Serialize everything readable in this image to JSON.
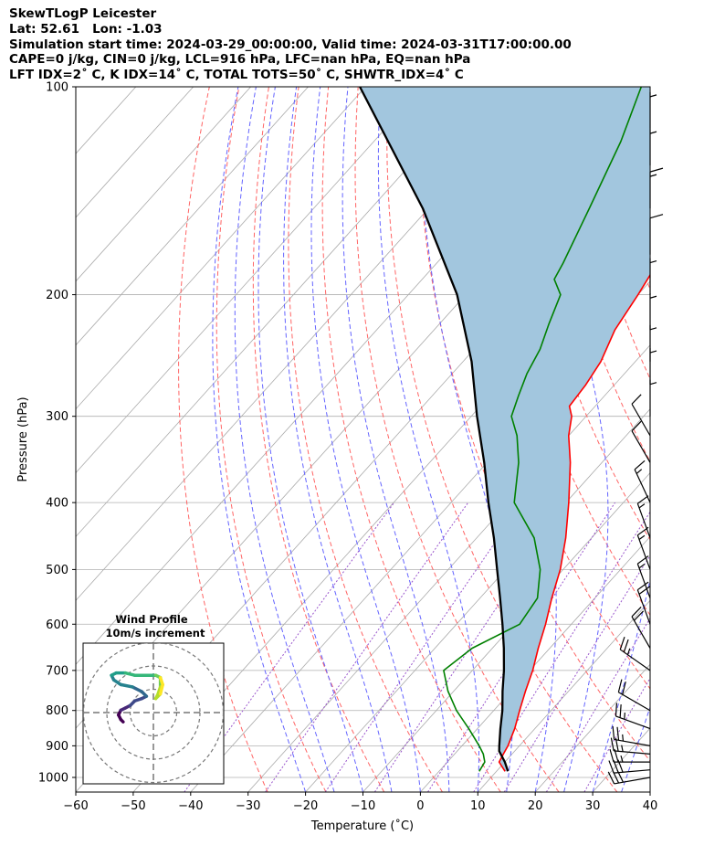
{
  "header": {
    "title": "SkewTLogP Leicester",
    "location": "Lat: 52.61   Lon: -1.03",
    "times": "Simulation start time: 2024-03-29_00:00:00, Valid time: 2024-03-31T17:00:00.00",
    "indices1": "CAPE=0 j/kg, CIN=0 j/kg, LCL=916 hPa, LFC=nan hPa, EQ=nan hPa",
    "indices2": "LFT IDX=2˚ C, K IDX=14˚ C, TOTAL TOTS=50˚ C, SHWTR_IDX=4˚ C"
  },
  "chart_data": {
    "type": "line",
    "subtype": "skew-t log-p",
    "xlabel": "Temperature (˚C)",
    "ylabel": "Pressure (hPa)",
    "xlim": [
      -60,
      40
    ],
    "ylim": [
      1050,
      100
    ],
    "yscale": "log",
    "x_ticks": [
      -60,
      -50,
      -40,
      -30,
      -20,
      -10,
      0,
      10,
      20,
      30,
      40
    ],
    "y_ticks": [
      100,
      200,
      300,
      400,
      500,
      600,
      700,
      800,
      900,
      1000
    ],
    "grid": true,
    "colors": {
      "temperature": "#ff0000",
      "dewpoint": "#008000",
      "parcel": "#000000",
      "fill": "#a2c6de",
      "dry_adiabats": "#ff6464",
      "moist_adiabats": "#6464ff",
      "mixing_ratio": "#9955cc",
      "isotherms": "#aaaaaa"
    },
    "series": [
      {
        "name": "temperature",
        "p": [
          980,
          950,
          925,
          900,
          850,
          800,
          750,
          700,
          650,
          600,
          550,
          500,
          450,
          400,
          350,
          320,
          300,
          290,
          270,
          250,
          225,
          200,
          175,
          150,
          130,
          115,
          100
        ],
        "t": [
          11.5,
          9.0,
          8.5,
          8.0,
          6.5,
          4.5,
          2.5,
          0.5,
          -2.0,
          -4.5,
          -7.5,
          -10.5,
          -14.5,
          -19.5,
          -25.5,
          -30.0,
          -32.5,
          -34.5,
          -35.0,
          -36.0,
          -38.5,
          -40.0,
          -42.0,
          -44.5,
          -48.0,
          -52.5,
          -58.0
        ]
      },
      {
        "name": "dewpoint",
        "p": [
          980,
          950,
          925,
          900,
          850,
          800,
          750,
          700,
          650,
          600,
          550,
          500,
          450,
          400,
          350,
          320,
          300,
          280,
          260,
          240,
          220,
          200,
          190,
          180,
          150,
          120,
          100
        ],
        "t": [
          7.0,
          6.5,
          5.0,
          3.0,
          -1.5,
          -6.5,
          -11.0,
          -15.0,
          -13.5,
          -9.0,
          -10.0,
          -14.0,
          -20.0,
          -29.0,
          -34.5,
          -39.0,
          -43.0,
          -45.0,
          -47.0,
          -48.5,
          -51.0,
          -53.5,
          -57.0,
          -58.0,
          -62.0,
          -67.0,
          -72.0
        ]
      },
      {
        "name": "parcel",
        "p": [
          980,
          950,
          916,
          900,
          850,
          800,
          750,
          700,
          650,
          600,
          550,
          500,
          450,
          400,
          350,
          300,
          250,
          200,
          150,
          100
        ],
        "t": [
          12.0,
          10.0,
          7.3,
          6.5,
          4.0,
          1.5,
          -1.5,
          -4.5,
          -8.0,
          -12.0,
          -16.5,
          -21.5,
          -27.0,
          -33.5,
          -40.5,
          -49.0,
          -58.5,
          -71.5,
          -91.0,
          -121.0
        ]
      }
    ],
    "wind_barbs": [
      {
        "p": 1000,
        "speed_kt": 30,
        "dir": 260
      },
      {
        "p": 975,
        "speed_kt": 30,
        "dir": 265
      },
      {
        "p": 950,
        "speed_kt": 25,
        "dir": 270
      },
      {
        "p": 925,
        "speed_kt": 25,
        "dir": 275
      },
      {
        "p": 900,
        "speed_kt": 25,
        "dir": 280
      },
      {
        "p": 850,
        "speed_kt": 25,
        "dir": 290
      },
      {
        "p": 800,
        "speed_kt": 20,
        "dir": 300
      },
      {
        "p": 700,
        "speed_kt": 25,
        "dir": 305
      },
      {
        "p": 650,
        "speed_kt": 20,
        "dir": 330
      },
      {
        "p": 600,
        "speed_kt": 20,
        "dir": 340
      },
      {
        "p": 550,
        "speed_kt": 15,
        "dir": 340
      },
      {
        "p": 500,
        "speed_kt": 15,
        "dir": 340
      },
      {
        "p": 450,
        "speed_kt": 15,
        "dir": 340
      },
      {
        "p": 400,
        "speed_kt": 15,
        "dir": 335
      },
      {
        "p": 350,
        "speed_kt": 10,
        "dir": 330
      },
      {
        "p": 320,
        "speed_kt": 10,
        "dir": 330
      },
      {
        "p": 300,
        "speed_kt": 5,
        "dir": 0
      },
      {
        "p": 270,
        "speed_kt": 5,
        "dir": 0
      },
      {
        "p": 250,
        "speed_kt": 5,
        "dir": 0
      },
      {
        "p": 225,
        "speed_kt": 5,
        "dir": 0
      },
      {
        "p": 200,
        "speed_kt": 5,
        "dir": 0
      },
      {
        "p": 175,
        "speed_kt": 10,
        "dir": 0
      },
      {
        "p": 150,
        "speed_kt": 15,
        "dir": 0
      },
      {
        "p": 130,
        "speed_kt": 5,
        "dir": 0
      },
      {
        "p": 115,
        "speed_kt": 5,
        "dir": 0
      }
    ],
    "hodograph": {
      "title": "Wind Profile",
      "subtitle": "10m/s increment",
      "rings_ms": [
        10,
        20,
        30
      ],
      "u": [
        -13,
        -14,
        -15,
        -14,
        -12,
        -10,
        -8,
        -5,
        -3,
        -5,
        -9,
        -14,
        -17,
        -18,
        -16,
        -12,
        -8,
        -4,
        1,
        3,
        3,
        2,
        1,
        3,
        4,
        3
      ],
      "v": [
        -4,
        -3,
        -1,
        1,
        2,
        3,
        5,
        6,
        7,
        9,
        11,
        12,
        14,
        16,
        17,
        17,
        16,
        16,
        16,
        15,
        11,
        8,
        6,
        8,
        12,
        15
      ]
    }
  }
}
